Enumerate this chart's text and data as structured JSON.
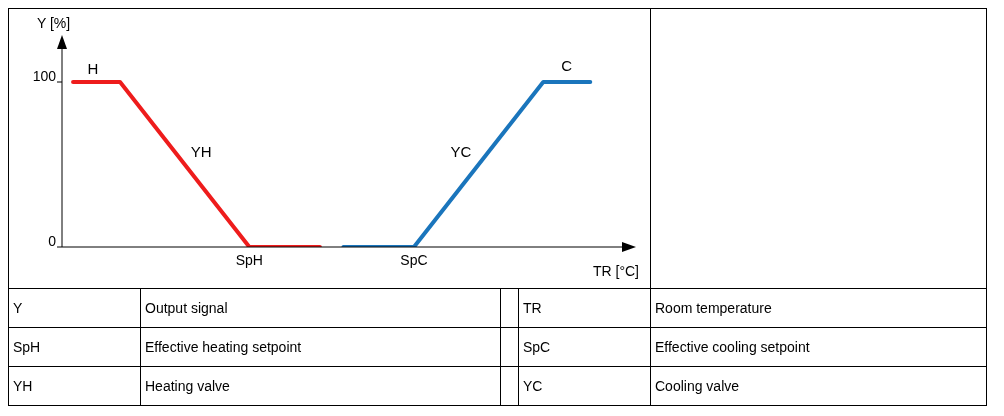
{
  "chart_data": [
    {
      "type": "line",
      "xlabel": "TR [°C]",
      "ylabel": "Y [%]",
      "categories": [
        null,
        null,
        null,
        null,
        null,
        null,
        null,
        null,
        null,
        null,
        null,
        null,
        null,
        null,
        null,
        "SpH",
        null,
        null,
        null,
        null,
        null,
        null,
        null,
        null,
        null,
        null,
        null,
        null,
        null,
        "SpC",
        null,
        null,
        null,
        null,
        null,
        null,
        null,
        null,
        null,
        null,
        null,
        null,
        null,
        null,
        null
      ],
      "ylim": [
        0,
        120
      ],
      "yticks": [
        0,
        100
      ],
      "grid": false,
      "legend": false,
      "marker": "none",
      "line_style": "solid",
      "series": [
        {
          "color": "#ee1c1c",
          "values": [
            100,
            100,
            100,
            100,
            100,
            90.9,
            81.8,
            72.7,
            63.6,
            54.5,
            45.5,
            36.4,
            27.3,
            18.2,
            9.1,
            0,
            0,
            0,
            0,
            0,
            0,
            0,
            null,
            null,
            null,
            null,
            null,
            null,
            null,
            null,
            null,
            null,
            null,
            null,
            null,
            null,
            null,
            null,
            null,
            null,
            null,
            null,
            null,
            null,
            null
          ]
        },
        {
          "color": "#1a75bc",
          "values": [
            null,
            null,
            null,
            null,
            null,
            null,
            null,
            null,
            null,
            null,
            null,
            null,
            null,
            null,
            null,
            null,
            null,
            null,
            null,
            null,
            null,
            null,
            null,
            0,
            0,
            0,
            0,
            0,
            0,
            0,
            9.1,
            18.2,
            27.3,
            36.4,
            45.5,
            54.5,
            63.6,
            72.7,
            81.8,
            90.9,
            100,
            100,
            100,
            100,
            100
          ]
        }
      ],
      "annotations": [
        "H",
        "YH",
        "YC",
        "C"
      ]
    },
    {
      "type": "other",
      "annotations": [
        "Y",
        "Output signal",
        "TR",
        "Room temperature",
        "SpH",
        "Effective heating setpoint",
        "SpC",
        "Effective cooling setpoint",
        "YH",
        "Heating valve",
        "YC",
        "Cooling valve"
      ]
    }
  ]
}
